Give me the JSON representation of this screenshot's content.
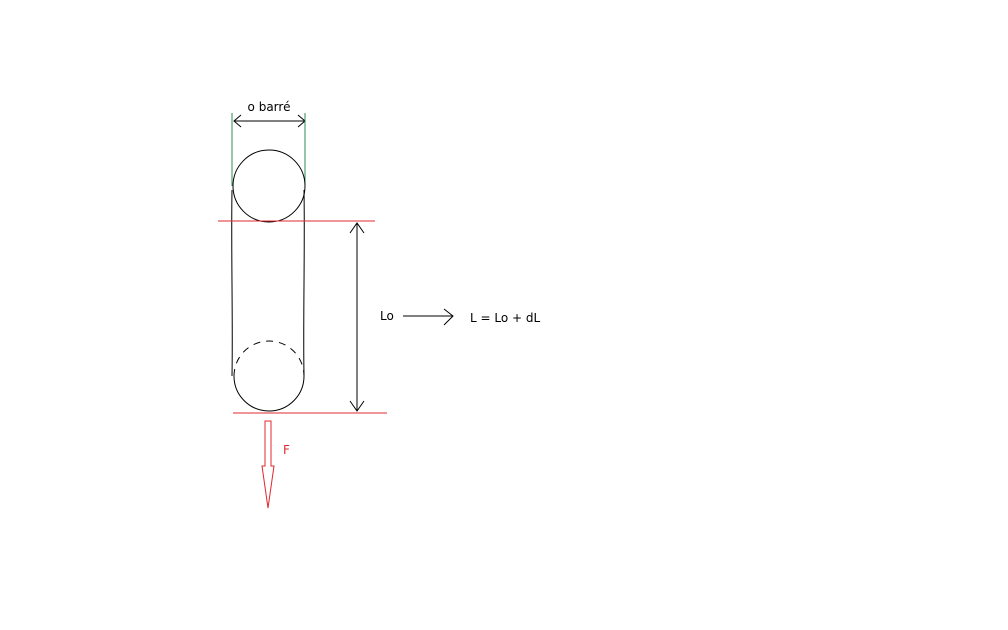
{
  "labels": {
    "diameter": "o barré",
    "initial_length": "Lo",
    "formula": "L = Lo + dL",
    "force": "F"
  },
  "colors": {
    "outline": "#000000",
    "reference_line": "#e0292f",
    "diameter_guide": "#2e8b57",
    "force_arrow": "#e0292f",
    "force_label": "#e0292f",
    "background": "#ffffff"
  }
}
